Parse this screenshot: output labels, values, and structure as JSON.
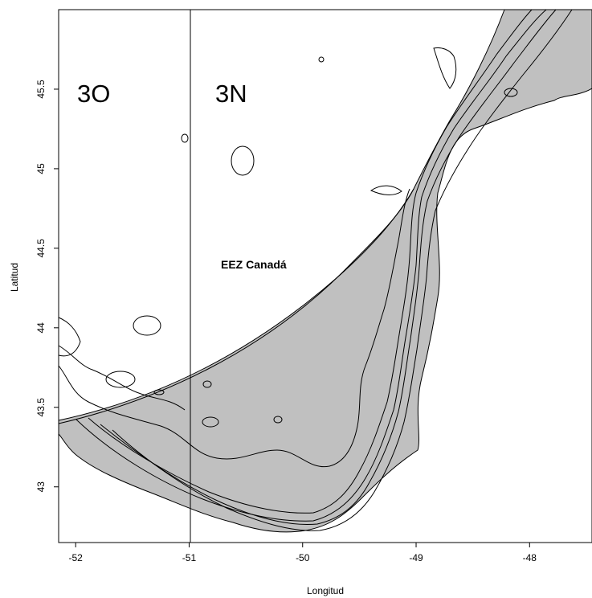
{
  "chart_data": {
    "type": "map",
    "xlabel": "Longitud",
    "ylabel": "Latitud",
    "xlim": [
      -52.15,
      -47.45
    ],
    "ylim": [
      42.65,
      46.0
    ],
    "x_ticks": [
      {
        "value": -52,
        "label": "-52"
      },
      {
        "value": -51,
        "label": "-51"
      },
      {
        "value": -50,
        "label": "-50"
      },
      {
        "value": -49,
        "label": "-49"
      },
      {
        "value": -48,
        "label": "-48"
      }
    ],
    "y_ticks": [
      {
        "value": 43,
        "label": "43"
      },
      {
        "value": 43.5,
        "label": "43.5"
      },
      {
        "value": 44,
        "label": "44"
      },
      {
        "value": 44.5,
        "label": "44.5"
      },
      {
        "value": 45,
        "label": "45"
      },
      {
        "value": 45.5,
        "label": "45.5"
      }
    ],
    "division_longitude": -51,
    "zones": {
      "left": "3O",
      "right": "3N"
    },
    "eez_label": "EEZ Canadá",
    "shaded_color": "#c0c0c0"
  }
}
